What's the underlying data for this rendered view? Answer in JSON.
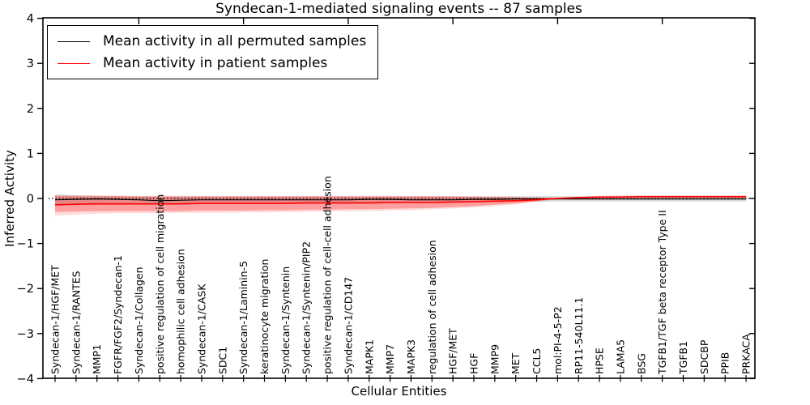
{
  "chart_data": {
    "type": "line",
    "title": "Syndecan-1-mediated signaling events -- 87 samples",
    "xlabel": "Cellular Entities",
    "ylabel": "Inferred Activity",
    "ylim": [
      -4,
      4
    ],
    "yticks": [
      -4,
      -3,
      -2,
      -1,
      0,
      1,
      2,
      3,
      4
    ],
    "legend_position": "upper left",
    "grid": false,
    "zero_line": {
      "style": "dotted",
      "color": "#000000",
      "y": 0
    },
    "categories": [
      "Syndecan-1/HGF/MET",
      "Syndecan-1/RANTES",
      "MMP1",
      "FGFR/FGF2/Syndecan-1",
      "Syndecan-1/Collagen",
      "positive regulation of cell migration",
      "homophilic cell adhesion",
      "Syndecan-1/CASK",
      "SDC1",
      "Syndecan-1/Laminin-5",
      "keratinocyte migration",
      "Syndecan-1/Syntenin",
      "Syndecan-1/Syntenin/PIP2",
      "positive regulation of cell-cell adhesion",
      "Syndecan-1/CD147",
      "MAPK1",
      "MMP7",
      "MAPK3",
      "regulation of cell adhesion",
      "HGF/MET",
      "HGF",
      "MMP9",
      "MET",
      "CCL5",
      "mol:PI-4-5-P2",
      "RP11-540L11.1",
      "HPSE",
      "LAMA5",
      "BSG",
      "TGFB1/TGF beta receptor Type II",
      "TGFB1",
      "SDCBP",
      "PPIB",
      "PRKACA"
    ],
    "series": [
      {
        "name": "Mean activity in all permuted samples",
        "color": "#000000",
        "width": 1.2,
        "values": [
          -0.03,
          -0.02,
          -0.01,
          -0.02,
          -0.03,
          -0.05,
          -0.04,
          -0.03,
          -0.03,
          -0.03,
          -0.03,
          -0.03,
          -0.03,
          -0.03,
          -0.03,
          -0.02,
          -0.02,
          -0.03,
          -0.03,
          -0.03,
          -0.02,
          -0.02,
          -0.01,
          -0.01,
          -0.01,
          -0.01,
          -0.01,
          -0.01,
          -0.01,
          -0.01,
          -0.01,
          -0.01,
          -0.01,
          -0.01
        ]
      },
      {
        "name": "Mean activity in patient samples",
        "color": "#ff0000",
        "width": 1.6,
        "values": [
          -0.14,
          -0.13,
          -0.12,
          -0.12,
          -0.12,
          -0.12,
          -0.12,
          -0.11,
          -0.11,
          -0.11,
          -0.11,
          -0.11,
          -0.1,
          -0.1,
          -0.1,
          -0.1,
          -0.09,
          -0.09,
          -0.09,
          -0.08,
          -0.07,
          -0.06,
          -0.05,
          -0.03,
          0.0,
          0.02,
          0.03,
          0.03,
          0.04,
          0.04,
          0.04,
          0.04,
          0.04,
          0.04
        ]
      }
    ],
    "bands": [
      {
        "name": "permuted-samples-range",
        "color": "#999999",
        "alpha": 0.35,
        "upper": [
          0.09,
          0.07,
          0.06,
          0.05,
          0.05,
          0.05,
          0.05,
          0.05,
          0.05,
          0.05,
          0.05,
          0.05,
          0.05,
          0.05,
          0.05,
          0.05,
          0.05,
          0.05,
          0.05,
          0.05,
          0.05,
          0.05,
          0.05,
          0.05,
          0.05,
          0.05,
          0.05,
          0.05,
          0.05,
          0.05,
          0.05,
          0.05,
          0.05,
          0.05
        ],
        "lower": [
          -0.15,
          -0.13,
          -0.11,
          -0.1,
          -0.1,
          -0.11,
          -0.11,
          -0.1,
          -0.1,
          -0.1,
          -0.1,
          -0.1,
          -0.1,
          -0.1,
          -0.1,
          -0.09,
          -0.09,
          -0.09,
          -0.09,
          -0.09,
          -0.08,
          -0.08,
          -0.07,
          -0.07,
          -0.07,
          -0.07,
          -0.07,
          -0.07,
          -0.07,
          -0.07,
          -0.07,
          -0.07,
          -0.07,
          -0.07
        ]
      },
      {
        "name": "patient-samples-outer-range",
        "color": "#ff0000",
        "alpha": 0.14,
        "upper": [
          0.08,
          0.07,
          0.07,
          0.07,
          0.06,
          0.06,
          0.06,
          0.06,
          0.06,
          0.06,
          0.06,
          0.06,
          0.06,
          0.06,
          0.06,
          0.06,
          0.06,
          0.06,
          0.06,
          0.05,
          0.05,
          0.04,
          0.04,
          0.03,
          0.02,
          0.04,
          0.06,
          0.07,
          0.07,
          0.07,
          0.07,
          0.07,
          0.07,
          0.07
        ],
        "lower": [
          -0.38,
          -0.36,
          -0.34,
          -0.33,
          -0.33,
          -0.33,
          -0.32,
          -0.32,
          -0.32,
          -0.31,
          -0.31,
          -0.3,
          -0.3,
          -0.29,
          -0.28,
          -0.28,
          -0.27,
          -0.26,
          -0.24,
          -0.22,
          -0.2,
          -0.17,
          -0.13,
          -0.08,
          -0.02,
          0.0,
          0.0,
          0.01,
          0.01,
          0.01,
          0.01,
          0.01,
          0.01,
          0.01
        ]
      },
      {
        "name": "patient-samples-inner-range",
        "color": "#ff0000",
        "alpha": 0.28,
        "upper": [
          0.05,
          0.05,
          0.05,
          0.05,
          0.04,
          0.04,
          0.04,
          0.04,
          0.04,
          0.04,
          0.04,
          0.04,
          0.04,
          0.04,
          0.04,
          0.04,
          0.04,
          0.04,
          0.04,
          0.04,
          0.03,
          0.03,
          0.02,
          0.01,
          0.01,
          0.03,
          0.05,
          0.05,
          0.06,
          0.06,
          0.06,
          0.06,
          0.06,
          0.06
        ],
        "lower": [
          -0.3,
          -0.29,
          -0.28,
          -0.28,
          -0.28,
          -0.28,
          -0.28,
          -0.27,
          -0.27,
          -0.27,
          -0.26,
          -0.26,
          -0.25,
          -0.25,
          -0.24,
          -0.24,
          -0.23,
          -0.22,
          -0.21,
          -0.19,
          -0.17,
          -0.14,
          -0.11,
          -0.06,
          -0.01,
          0.01,
          0.01,
          0.02,
          0.02,
          0.02,
          0.02,
          0.02,
          0.02,
          0.02
        ]
      }
    ]
  }
}
